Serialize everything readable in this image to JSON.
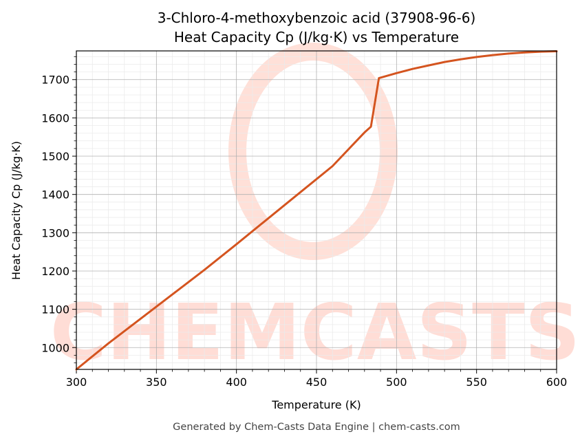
{
  "chart_data": {
    "type": "line",
    "title_line1": "3-Chloro-4-methoxybenzoic acid (37908-96-6)",
    "title_line2": "Heat Capacity Cp (J/kg·K) vs Temperature",
    "xlabel": "Temperature (K)",
    "ylabel": "Heat Capacity Cp (J/kg·K)",
    "xlim": [
      300,
      600
    ],
    "ylim": [
      943,
      1775
    ],
    "xticks": [
      300,
      350,
      400,
      450,
      500,
      550,
      600
    ],
    "yticks": [
      1000,
      1100,
      1200,
      1300,
      1400,
      1500,
      1600,
      1700
    ],
    "grid": true,
    "line_color": "#d4541f",
    "series": [
      {
        "x": [
          300,
          320,
          340,
          360,
          380,
          400,
          420,
          440,
          460,
          480,
          484,
          489,
          500,
          510,
          520,
          530,
          540,
          550,
          560,
          570,
          580,
          590,
          600
        ],
        "y": [
          943,
          1011,
          1075,
          1139,
          1203,
          1270,
          1338,
          1406,
          1474,
          1562,
          1577,
          1704,
          1717,
          1728,
          1737,
          1746,
          1753,
          1759,
          1764,
          1768,
          1771,
          1773,
          1774
        ]
      }
    ]
  },
  "watermark": {
    "text": "CHEMCASTS",
    "color": "#ffddd6"
  },
  "footer": "Generated by Chem-Casts Data Engine | chem-casts.com"
}
